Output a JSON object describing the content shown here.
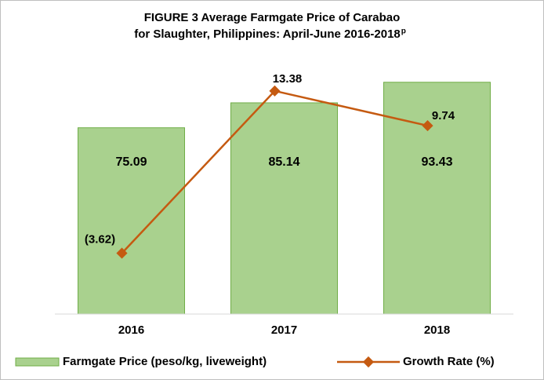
{
  "chart_data": {
    "type": "bar+line",
    "title": [
      "FIGURE 3  Average Farmgate Price of Carabao",
      "for Slaughter, Philippines: April-June 2016-2018"
    ],
    "title_superscript": "p",
    "categories": [
      "2016",
      "2017",
      "2018"
    ],
    "series": [
      {
        "name": "Farmgate Price (peso/kg, liveweight)",
        "type": "bar",
        "color": "#a9d18e",
        "values": [
          75.09,
          85.14,
          93.43
        ]
      },
      {
        "name": "Growth Rate (%)",
        "type": "line",
        "axis": "y2",
        "color": "#c55a11",
        "values": [
          -3.62,
          13.38,
          9.74
        ],
        "value_labels": [
          "(3.62)",
          "13.38",
          "9.74"
        ]
      }
    ],
    "ylim": [
      0,
      100
    ],
    "y2lim": [
      -10,
      16
    ],
    "legend": "bottom"
  }
}
